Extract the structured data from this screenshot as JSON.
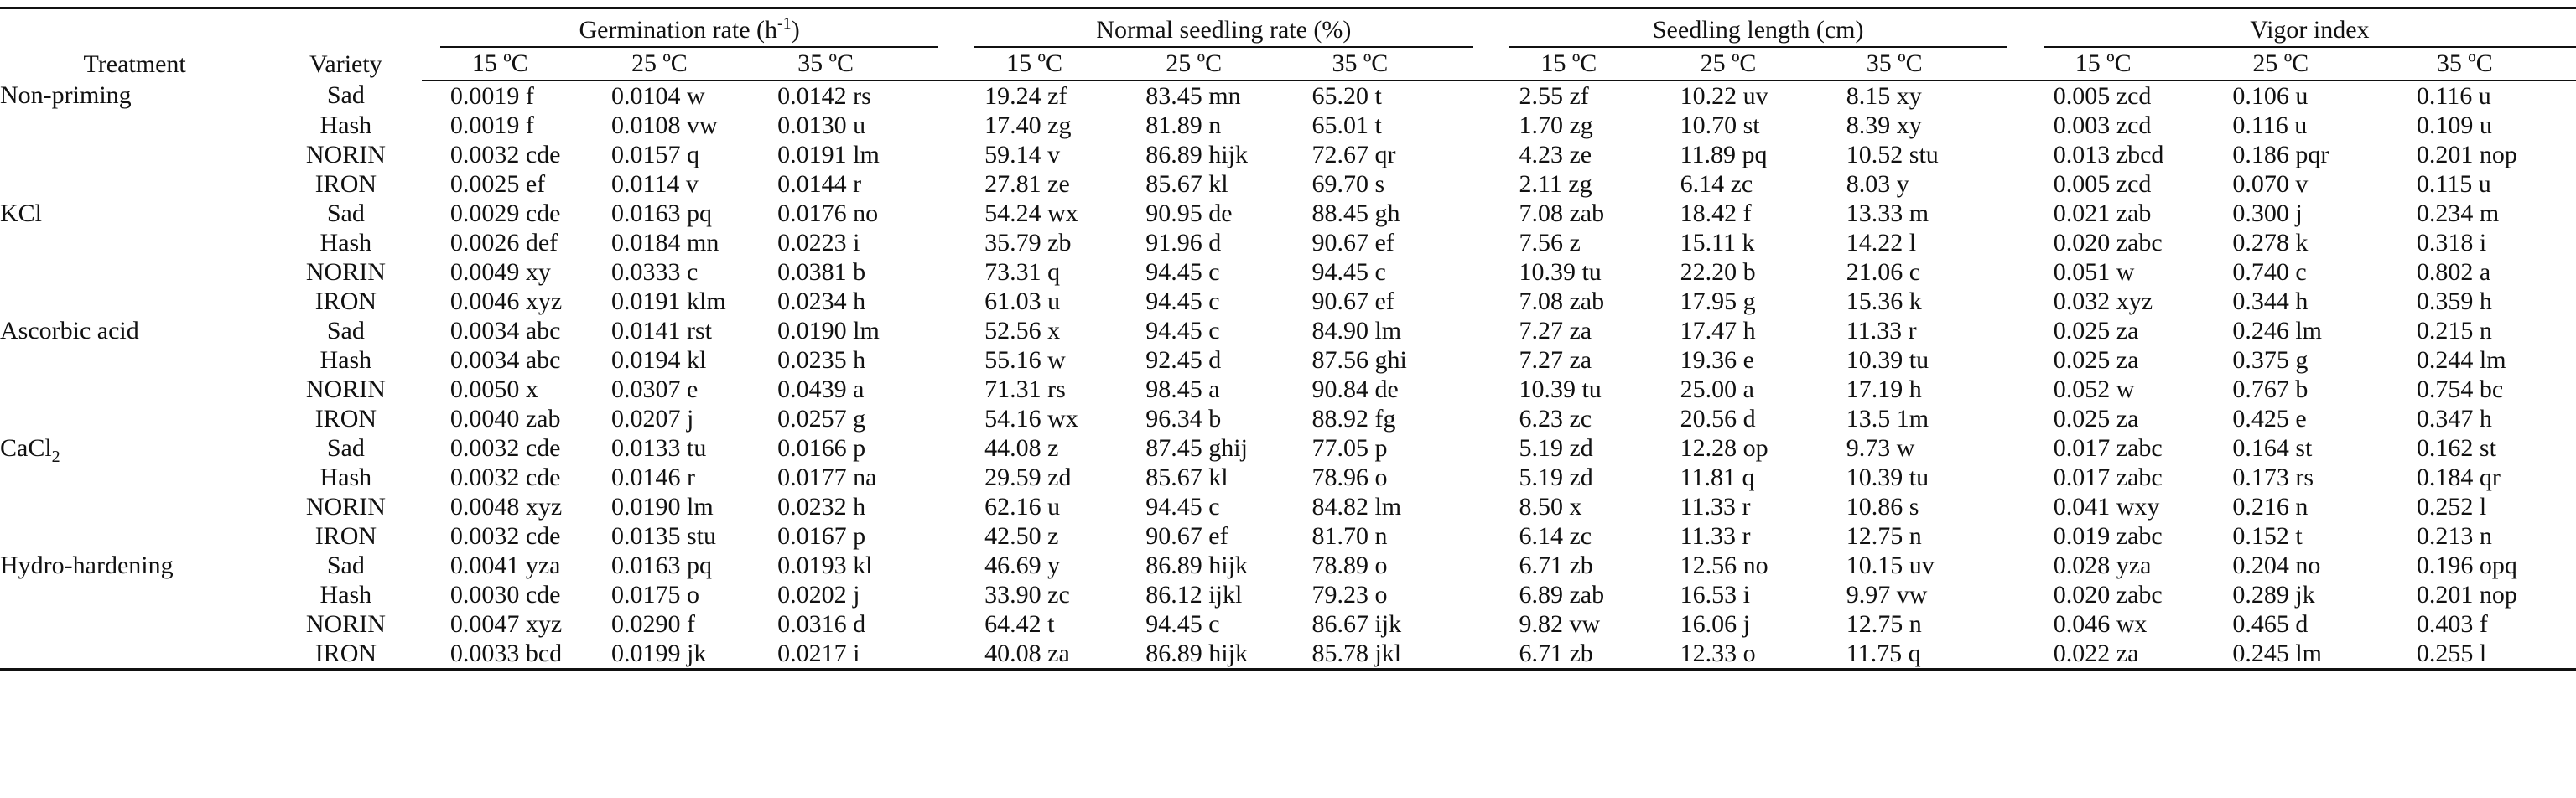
{
  "headers": {
    "treatment": "Treatment",
    "variety": "Variety",
    "groups": [
      {
        "title": "Germination rate (h",
        "sup": "-1",
        "close": ")"
      },
      {
        "title": "Normal seedling rate (%)",
        "sup": "",
        "close": ""
      },
      {
        "title": "Seedling length (cm)",
        "sup": "",
        "close": ""
      },
      {
        "title": "Vigor index",
        "sup": "",
        "close": ""
      }
    ],
    "temps": [
      "15 ºC",
      "25 ºC",
      "35 ºC"
    ]
  },
  "rows": [
    {
      "treatment": "Non-priming",
      "variety": "Sad",
      "values": [
        "0.0019 f",
        "0.0104 w",
        "0.0142 rs",
        "19.24 zf",
        "83.45 mn",
        "65.20 t",
        "2.55 zf",
        "10.22 uv",
        "8.15 xy",
        "0.005 zcd",
        "0.106 u",
        "0.116 u"
      ]
    },
    {
      "treatment": "",
      "variety": "Hash",
      "values": [
        "0.0019 f",
        "0.0108 vw",
        "0.0130 u",
        "17.40 zg",
        "81.89 n",
        "65.01 t",
        "1.70 zg",
        "10.70 st",
        "8.39 xy",
        "0.003 zcd",
        "0.116 u",
        "0.109 u"
      ]
    },
    {
      "treatment": "",
      "variety": "NORIN",
      "values": [
        "0.0032 cde",
        "0.0157 q",
        "0.0191 lm",
        "59.14 v",
        "86.89 hijk",
        "72.67 qr",
        "4.23 ze",
        "11.89 pq",
        "10.52 stu",
        "0.013 zbcd",
        "0.186 pqr",
        "0.201 nop"
      ]
    },
    {
      "treatment": "",
      "variety": "IRON",
      "values": [
        "0.0025 ef",
        "0.0114 v",
        "0.0144 r",
        "27.81 ze",
        "85.67 kl",
        "69.70 s",
        "2.11 zg",
        "6.14 zc",
        "8.03 y",
        "0.005 zcd",
        "0.070 v",
        "0.115 u"
      ]
    },
    {
      "treatment": "KCl",
      "variety": "Sad",
      "values": [
        "0.0029 cde",
        "0.0163 pq",
        "0.0176 no",
        "54.24 wx",
        "90.95 de",
        "88.45 gh",
        "7.08 zab",
        "18.42 f",
        "13.33 m",
        "0.021 zab",
        "0.300 j",
        "0.234 m"
      ]
    },
    {
      "treatment": "",
      "variety": "Hash",
      "values": [
        "0.0026 def",
        "0.0184 mn",
        "0.0223 i",
        "35.79 zb",
        "91.96 d",
        "90.67 ef",
        "7.56 z",
        "15.11 k",
        "14.22 l",
        "0.020 zabc",
        "0.278 k",
        "0.318 i"
      ]
    },
    {
      "treatment": "",
      "variety": "NORIN",
      "values": [
        "0.0049 xy",
        "0.0333 c",
        "0.0381 b",
        "73.31 q",
        "94.45 c",
        "94.45 c",
        "10.39 tu",
        "22.20 b",
        "21.06 c",
        "0.051 w",
        "0.740 c",
        "0.802 a"
      ]
    },
    {
      "treatment": "",
      "variety": "IRON",
      "values": [
        "0.0046 xyz",
        "0.0191 klm",
        "0.0234 h",
        "61.03 u",
        "94.45 c",
        "90.67 ef",
        "7.08 zab",
        "17.95 g",
        "15.36 k",
        "0.032 xyz",
        "0.344 h",
        "0.359 h"
      ]
    },
    {
      "treatment": "Ascorbic acid",
      "variety": "Sad",
      "values": [
        "0.0034 abc",
        "0.0141 rst",
        "0.0190 lm",
        "52.56 x",
        "94.45 c",
        "84.90 lm",
        "7.27 za",
        "17.47 h",
        "11.33 r",
        "0.025 za",
        "0.246 lm",
        "0.215 n"
      ]
    },
    {
      "treatment": "",
      "variety": "Hash",
      "values": [
        "0.0034 abc",
        "0.0194 kl",
        "0.0235 h",
        "55.16 w",
        "92.45 d",
        "87.56 ghi",
        "7.27 za",
        "19.36 e",
        "10.39 tu",
        "0.025 za",
        "0.375 g",
        "0.244 lm"
      ]
    },
    {
      "treatment": "",
      "variety": "NORIN",
      "values": [
        "0.0050 x",
        "0.0307 e",
        "0.0439 a",
        "71.31 rs",
        "98.45 a",
        "90.84 de",
        "10.39 tu",
        "25.00 a",
        "17.19 h",
        "0.052 w",
        "0.767 b",
        "0.754 bc"
      ]
    },
    {
      "treatment": "",
      "variety": "IRON",
      "values": [
        "0.0040 zab",
        "0.0207 j",
        "0.0257 g",
        "54.16 wx",
        "96.34 b",
        "88.92 fg",
        "6.23 zc",
        "20.56 d",
        "13.5 1m",
        "0.025 za",
        "0.425 e",
        "0.347 h"
      ]
    },
    {
      "treatment": "CaCl",
      "treatment_sub": "2",
      "variety": "Sad",
      "values": [
        "0.0032 cde",
        "0.0133 tu",
        "0.0166 p",
        "44.08 z",
        "87.45 ghij",
        "77.05 p",
        "5.19 zd",
        "12.28 op",
        "9.73 w",
        "0.017 zabc",
        "0.164 st",
        "0.162 st"
      ]
    },
    {
      "treatment": "",
      "variety": "Hash",
      "values": [
        "0.0032 cde",
        "0.0146 r",
        "0.0177 na",
        "29.59 zd",
        "85.67 kl",
        "78.96 o",
        "5.19 zd",
        "11.81 q",
        "10.39 tu",
        "0.017 zabc",
        "0.173 rs",
        "0.184 qr"
      ]
    },
    {
      "treatment": "",
      "variety": "NORIN",
      "values": [
        "0.0048 xyz",
        "0.0190 lm",
        "0.0232 h",
        "62.16 u",
        "94.45 c",
        "84.82 lm",
        "8.50 x",
        "11.33 r",
        "10.86 s",
        "0.041 wxy",
        "0.216 n",
        "0.252 l"
      ]
    },
    {
      "treatment": "",
      "variety": "IRON",
      "values": [
        "0.0032 cde",
        "0.0135 stu",
        "0.0167 p",
        "42.50 z",
        "90.67 ef",
        "81.70 n",
        "6.14 zc",
        "11.33 r",
        "12.75 n",
        "0.019 zabc",
        "0.152 t",
        "0.213 n"
      ]
    },
    {
      "treatment": "Hydro-hardening",
      "variety": "Sad",
      "values": [
        "0.0041 yza",
        "0.0163 pq",
        "0.0193 kl",
        "46.69 y",
        "86.89 hijk",
        "78.89 o",
        "6.71 zb",
        "12.56 no",
        "10.15 uv",
        "0.028 yza",
        "0.204 no",
        "0.196 opq"
      ]
    },
    {
      "treatment": "",
      "variety": "Hash",
      "values": [
        "0.0030 cde",
        "0.0175 o",
        "0.0202 j",
        "33.90 zc",
        "86.12 ijkl",
        "79.23 o",
        "6.89 zab",
        "16.53 i",
        "9.97 vw",
        "0.020 zabc",
        "0.289 jk",
        "0.201 nop"
      ]
    },
    {
      "treatment": "",
      "variety": "NORIN",
      "values": [
        "0.0047 xyz",
        "0.0290 f",
        "0.0316 d",
        "64.42 t",
        "94.45 c",
        "86.67 ijk",
        "9.82 vw",
        "16.06 j",
        "12.75 n",
        "0.046 wx",
        "0.465 d",
        "0.403 f"
      ]
    },
    {
      "treatment": "",
      "variety": "IRON",
      "values": [
        "0.0033 bcd",
        "0.0199 jk",
        "0.0217 i",
        "40.08 za",
        "86.89 hijk",
        "85.78 jkl",
        "6.71 zb",
        "12.33 o",
        "11.75 q",
        "0.022 za",
        "0.245 lm",
        "0.255 l"
      ]
    }
  ]
}
